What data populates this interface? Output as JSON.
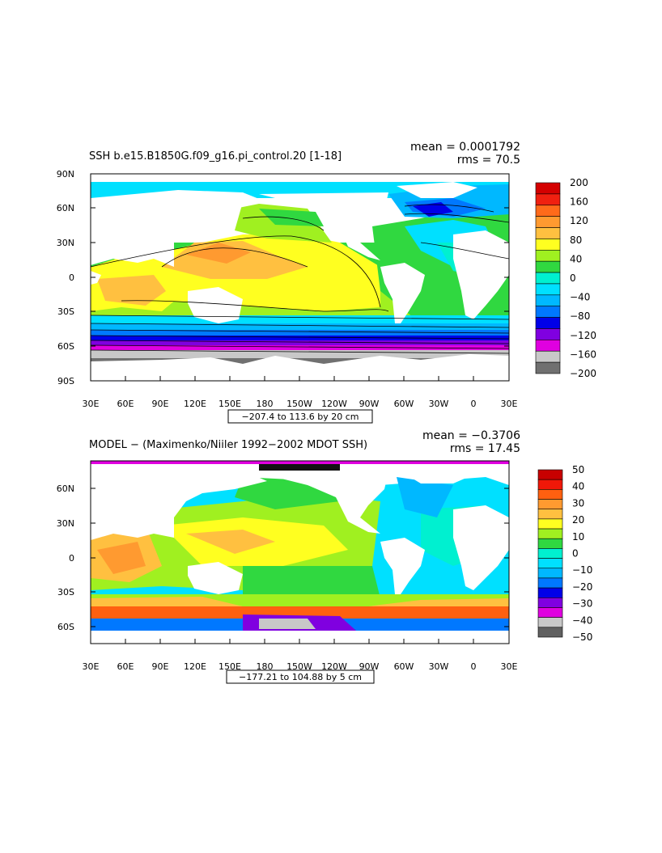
{
  "panels": [
    {
      "title": "SSH b.e15.B1850G.f09_g16.pi_control.20 [1-18]",
      "mean": "mean = 0.0001792",
      "rms": "rms = 70.5",
      "range": "−207.4 to 113.6 by 20 cm",
      "lat_labels": [
        "90N",
        "60N",
        "30N",
        "0",
        "30S",
        "60S",
        "90S"
      ],
      "lon_labels": [
        "30E",
        "60E",
        "90E",
        "120E",
        "150E",
        "180",
        "150W",
        "120W",
        "90W",
        "60W",
        "30W",
        "0",
        "30E"
      ],
      "colorbar": {
        "labels": [
          "200",
          "160",
          "120",
          "80",
          "40",
          "0",
          "−40",
          "−80",
          "−120",
          "−160",
          "−200"
        ],
        "colors": [
          "#d40000",
          "#f02010",
          "#ff6a1a",
          "#ff9a30",
          "#ffc040",
          "#ffff20",
          "#a0f020",
          "#30d840",
          "#00f0d0",
          "#00e0ff",
          "#00b8ff",
          "#0078ff",
          "#0000e8",
          "#8000e0",
          "#e000e0",
          "#c8c8c8",
          "#707070"
        ]
      }
    },
    {
      "title": "MODEL − (Maximenko/Niiler 1992−2002 MDOT SSH)",
      "mean": "mean = −0.3706",
      "rms": "rms = 17.45",
      "range": "−177.21 to 104.88 by 5 cm",
      "lat_labels": [
        "60N",
        "30N",
        "0",
        "30S",
        "60S"
      ],
      "lon_labels": [
        "30E",
        "60E",
        "90E",
        "120E",
        "150E",
        "180",
        "150W",
        "120W",
        "90W",
        "60W",
        "30W",
        "0",
        "30E"
      ],
      "colorbar": {
        "labels": [
          "50",
          "40",
          "30",
          "20",
          "10",
          "0",
          "−10",
          "−20",
          "−30",
          "−40",
          "−50"
        ],
        "colors": [
          "#c80000",
          "#f01808",
          "#ff6010",
          "#ff9a30",
          "#ffc040",
          "#ffff20",
          "#a0f020",
          "#30d840",
          "#00f0d0",
          "#00e0ff",
          "#00b8ff",
          "#0078ff",
          "#0000e8",
          "#8000e0",
          "#e000e0",
          "#c8c8c8",
          "#606060"
        ]
      }
    }
  ]
}
